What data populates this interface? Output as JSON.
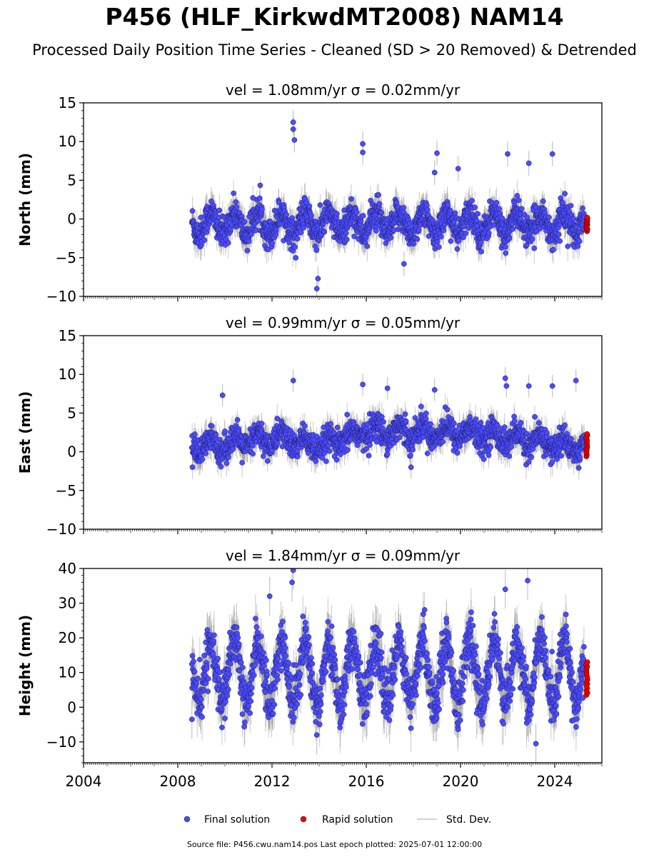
{
  "title": "P456 (HLF_KirkwdMT2008) NAM14",
  "subtitle": "Processed Daily Position Time Series - Cleaned (SD > 20 Removed) & Detrended",
  "footer": "Source file: P456.cwu.nam14.pos  Last epoch plotted: 2025-07-01 12:00:00",
  "colors": {
    "final": "#4b4bff",
    "rapid": "#ee0000",
    "stddev": "#888888"
  },
  "chart_data": [
    {
      "type": "scatter",
      "panel": "north",
      "title": "vel = 1.08mm/yr   σ = 0.02mm/yr",
      "ylabel": "North (mm)",
      "xlim": [
        2004,
        2026
      ],
      "ylim": [
        -10,
        15
      ],
      "yticks": [
        "15",
        "10",
        "5",
        "0",
        "−5",
        "−10"
      ],
      "ytick_values": [
        15,
        10,
        5,
        0,
        -5,
        -10
      ],
      "series": [
        {
          "name": "Final solution",
          "x_range": [
            2008.6,
            2025.25
          ],
          "mean": -0.6,
          "amplitude": 1.4,
          "spread": 1.0,
          "outliers": [
            [
              2012.9,
              12.5
            ],
            [
              2012.9,
              11.6
            ],
            [
              2012.95,
              10.2
            ],
            [
              2013.9,
              -9.0
            ],
            [
              2013.95,
              -7.7
            ],
            [
              2015.85,
              9.7
            ],
            [
              2015.85,
              8.6
            ],
            [
              2019.0,
              8.5
            ],
            [
              2019.9,
              6.5
            ],
            [
              2022.0,
              8.4
            ],
            [
              2022.9,
              7.2
            ],
            [
              2023.9,
              8.4
            ],
            [
              2018.9,
              6.0
            ],
            [
              2017.6,
              -5.8
            ]
          ]
        },
        {
          "name": "Rapid solution",
          "x_range": [
            2025.3,
            2025.5
          ],
          "y_range": [
            -1.6,
            0.2
          ]
        }
      ]
    },
    {
      "type": "scatter",
      "panel": "east",
      "title": "vel = 0.99mm/yr   σ = 0.05mm/yr",
      "ylabel": "East (mm)",
      "xlim": [
        2004,
        2026
      ],
      "ylim": [
        -10,
        15
      ],
      "yticks": [
        "15",
        "10",
        "5",
        "0",
        "−5",
        "−10"
      ],
      "ytick_values": [
        15,
        10,
        5,
        0,
        -5,
        -10
      ],
      "series": [
        {
          "name": "Final solution",
          "x_range": [
            2008.6,
            2025.25
          ],
          "trend": [
            [
              2008.6,
              0.5
            ],
            [
              2012.5,
              1.8
            ],
            [
              2014,
              0.5
            ],
            [
              2016,
              2.7
            ],
            [
              2020,
              2.5
            ],
            [
              2025.25,
              0.5
            ]
          ],
          "amplitude": 0.8,
          "spread": 0.9,
          "outliers": [
            [
              2012.9,
              9.2
            ],
            [
              2015.85,
              8.7
            ],
            [
              2016.9,
              8.2
            ],
            [
              2018.9,
              8.0
            ],
            [
              2021.9,
              9.5
            ],
            [
              2021.95,
              8.5
            ],
            [
              2022.9,
              8.5
            ],
            [
              2023.9,
              8.5
            ],
            [
              2024.9,
              9.2
            ],
            [
              2009.9,
              7.3
            ],
            [
              2017.9,
              -2.0
            ]
          ]
        },
        {
          "name": "Rapid solution",
          "x_range": [
            2025.3,
            2025.5
          ],
          "y_range": [
            -0.6,
            2.3
          ]
        }
      ]
    },
    {
      "type": "scatter",
      "panel": "height",
      "title": "vel = 1.84mm/yr   σ = 0.09mm/yr",
      "ylabel": "Height (mm)",
      "xlim": [
        2004,
        2026
      ],
      "ylim": [
        -16,
        40
      ],
      "yticks": [
        "40",
        "30",
        "20",
        "10",
        "0",
        "−10"
      ],
      "ytick_values": [
        40,
        30,
        20,
        10,
        0,
        -10
      ],
      "xticks": [
        "2004",
        "2008",
        "2012",
        "2016",
        "2020",
        "2024"
      ],
      "xtick_values": [
        2004,
        2008,
        2012,
        2016,
        2020,
        2024
      ],
      "series": [
        {
          "name": "Final solution",
          "x_range": [
            2008.6,
            2025.25
          ],
          "mean": 10,
          "amplitude": 9,
          "spread": 3.5,
          "outliers": [
            [
              2012.9,
              39.5
            ],
            [
              2012.85,
              36
            ],
            [
              2022.85,
              36.5
            ],
            [
              2021.9,
              34
            ],
            [
              2011.9,
              32
            ],
            [
              2008.6,
              -3.5
            ],
            [
              2023.2,
              -10.5
            ],
            [
              2013.9,
              -8
            ]
          ]
        },
        {
          "name": "Rapid solution",
          "x_range": [
            2025.3,
            2025.5
          ],
          "y_range": [
            3.5,
            13.0
          ]
        }
      ]
    }
  ],
  "legend": {
    "placement": "bottom-center",
    "items": [
      {
        "label": "Final solution",
        "kind": "final"
      },
      {
        "label": "Rapid solution",
        "kind": "rapid"
      },
      {
        "label": "Std. Dev.",
        "kind": "stddev"
      }
    ]
  }
}
